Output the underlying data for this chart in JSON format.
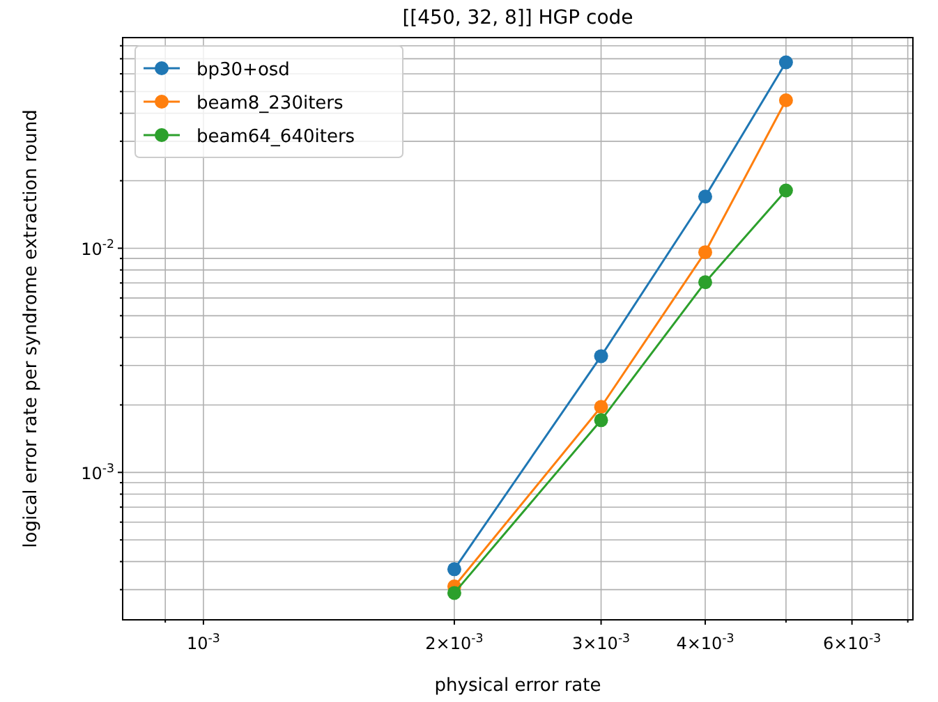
{
  "chart_data": {
    "type": "line",
    "title": "[[450, 32, 8]] HGP code",
    "xlabel": "physical error rate",
    "ylabel": "logical error rate per syndrome extraction round",
    "log": "xy",
    "grid": true,
    "legend": "top left",
    "marker": "circle",
    "line_style": "solid",
    "x": [
      0.002,
      0.003,
      0.004,
      0.005
    ],
    "xlim": [
      0.0008,
      0.0071
    ],
    "xticks": [
      {
        "value": 0.0009,
        "label": null
      },
      {
        "value": 0.001,
        "label": "10$^{-3}$"
      },
      {
        "value": 0.002,
        "label": "2×10$^{-3}$"
      },
      {
        "value": 0.003,
        "label": "3×10$^{-3}$"
      },
      {
        "value": 0.004,
        "label": "4×10$^{-3}$"
      },
      {
        "value": 0.005,
        "label": null
      },
      {
        "value": 0.006,
        "label": "6×10$^{-3}$"
      },
      {
        "value": 0.007,
        "label": null
      }
    ],
    "ylim": [
      0.00022,
      0.087
    ],
    "yticks": [
      {
        "value": 0.0003,
        "label": null
      },
      {
        "value": 0.0004,
        "label": null
      },
      {
        "value": 0.0005,
        "label": null
      },
      {
        "value": 0.0006,
        "label": null
      },
      {
        "value": 0.0007,
        "label": null
      },
      {
        "value": 0.0008,
        "label": null
      },
      {
        "value": 0.0009,
        "label": null
      },
      {
        "value": 0.001,
        "label": "10$^{-3}$"
      },
      {
        "value": 0.002,
        "label": null
      },
      {
        "value": 0.003,
        "label": null
      },
      {
        "value": 0.004,
        "label": null
      },
      {
        "value": 0.005,
        "label": null
      },
      {
        "value": 0.006,
        "label": null
      },
      {
        "value": 0.007,
        "label": null
      },
      {
        "value": 0.008,
        "label": null
      },
      {
        "value": 0.009,
        "label": null
      },
      {
        "value": 0.01,
        "label": "10$^{-2}$"
      },
      {
        "value": 0.02,
        "label": null
      },
      {
        "value": 0.03,
        "label": null
      },
      {
        "value": 0.04,
        "label": null
      },
      {
        "value": 0.05,
        "label": null
      },
      {
        "value": 0.06,
        "label": null
      },
      {
        "value": 0.07,
        "label": null
      },
      {
        "value": 0.08,
        "label": null
      }
    ],
    "series": [
      {
        "name": "bp30+osd",
        "color": "#1f77b4",
        "values": [
          0.00037,
          0.0033,
          0.017,
          0.0675
        ]
      },
      {
        "name": "beam8_230iters",
        "color": "#ff7f0e",
        "values": [
          0.00031,
          0.00196,
          0.0096,
          0.0457
        ]
      },
      {
        "name": "beam64_640iters",
        "color": "#2ca02c",
        "values": [
          0.00029,
          0.00171,
          0.00705,
          0.0181
        ]
      }
    ]
  }
}
